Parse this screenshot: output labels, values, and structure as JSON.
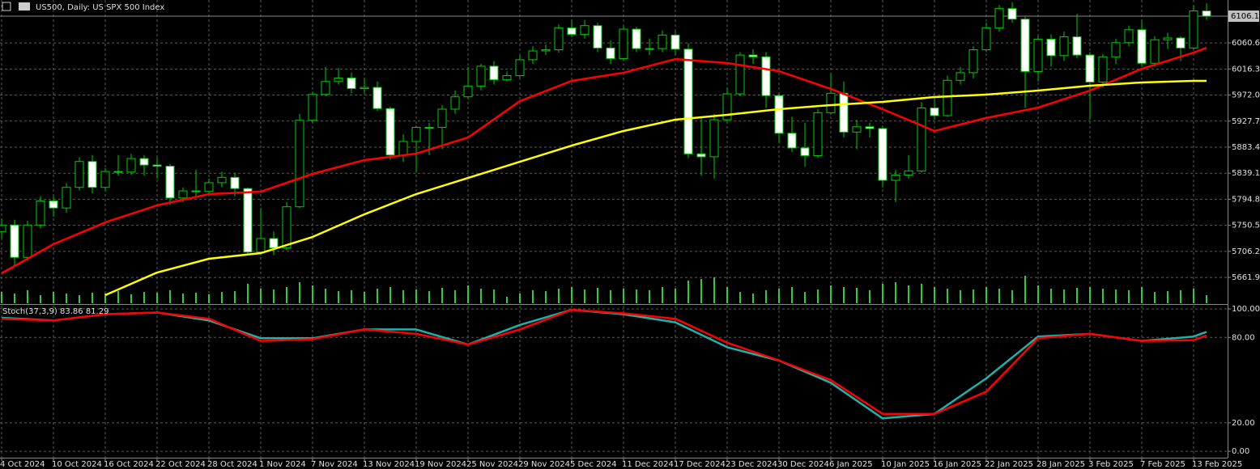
{
  "chart_data": [
    {
      "type": "candlestick",
      "title": "US500, Daily:  US SPX 500 Index",
      "categories": [
        "4 Oct 2024",
        null,
        null,
        null,
        "10 Oct 2024",
        null,
        null,
        null,
        "16 Oct 2024",
        null,
        null,
        null,
        "22 Oct 2024",
        null,
        null,
        null,
        "28 Oct 2024",
        null,
        null,
        null,
        "1 Nov 2024",
        null,
        null,
        null,
        "7 Nov 2024",
        null,
        null,
        null,
        "13 Nov 2024",
        null,
        null,
        null,
        "19 Nov 2024",
        null,
        null,
        null,
        "25 Nov 2024",
        null,
        null,
        null,
        "29 Nov 2024",
        null,
        null,
        null,
        "5 Dec 2024",
        null,
        null,
        null,
        "11 Dec 2024",
        null,
        null,
        null,
        "17 Dec 2024",
        null,
        null,
        null,
        "23 Dec 2024",
        null,
        null,
        null,
        "30 Dec 2024",
        null,
        null,
        null,
        "6 Jan 2025",
        null,
        null,
        null,
        "10 Jan 2025",
        null,
        null,
        null,
        "16 Jan 2025",
        null,
        null,
        null,
        "22 Jan 2025",
        null,
        null,
        null,
        "28 Jan 2025",
        null,
        null,
        null,
        "3 Feb 2025",
        null,
        null,
        null,
        "7 Feb 2025",
        null,
        null,
        null,
        "13 Feb 2025",
        null
      ],
      "open": [
        5740,
        5751,
        5696,
        5751,
        5792,
        5780,
        5815,
        5859,
        5815,
        5842,
        5841,
        5864,
        5853,
        5851,
        5797,
        5809,
        5808,
        5823,
        5832,
        5813,
        5705,
        5728,
        5712,
        5782,
        5929,
        5973,
        5995,
        6001,
        5983,
        5985,
        5949,
        5870,
        5893,
        5917,
        5917,
        5948,
        5969,
        5987,
        6021,
        5998,
        6005,
        6032,
        6047,
        6049,
        6086,
        6075,
        6090,
        6052,
        6034,
        6084,
        6051,
        6051,
        6074,
        6050,
        5872,
        5867,
        5930,
        5974,
        6040,
        6037,
        5971,
        5907,
        5882,
        5869,
        5942,
        5975,
        5909,
        5918,
        5915,
        5827,
        5836,
        5843,
        5950,
        5937,
        5997,
        6010,
        6049,
        6086,
        6119,
        6101,
        6012,
        6067,
        6039,
        6071,
        6040,
        5994,
        6037,
        6061,
        6083,
        6026,
        6066,
        6069,
        6052,
        6115
      ],
      "high": [
        5762,
        5760,
        5758,
        5800,
        5800,
        5822,
        5866,
        5870,
        5848,
        5870,
        5872,
        5870,
        5866,
        5855,
        5815,
        5845,
        5830,
        5842,
        5840,
        5815,
        5780,
        5740,
        5790,
        5940,
        5978,
        6020,
        6018,
        6010,
        6000,
        5995,
        5952,
        5905,
        5920,
        5925,
        5955,
        5980,
        6020,
        6025,
        6030,
        6012,
        6040,
        6055,
        6058,
        6092,
        6100,
        6100,
        6095,
        6065,
        6090,
        6088,
        6068,
        6082,
        6080,
        6060,
        5935,
        5940,
        5985,
        6045,
        6050,
        6045,
        5975,
        5935,
        5925,
        5948,
        6010,
        5995,
        5930,
        5925,
        5920,
        5845,
        5870,
        5960,
        5965,
        6005,
        6020,
        6055,
        6095,
        6125,
        6130,
        6105,
        6072,
        6075,
        6080,
        6110,
        6045,
        6042,
        6068,
        6090,
        6100,
        6072,
        6078,
        6072,
        6125,
        6128
      ],
      "low": [
        5728,
        5680,
        5690,
        5745,
        5765,
        5772,
        5810,
        5805,
        5808,
        5835,
        5836,
        5835,
        5830,
        5785,
        5790,
        5800,
        5802,
        5815,
        5800,
        5700,
        5700,
        5700,
        5708,
        5780,
        5925,
        5970,
        5990,
        5975,
        5975,
        5945,
        5862,
        5858,
        5840,
        5870,
        5880,
        5940,
        5965,
        5980,
        5990,
        5995,
        6000,
        6025,
        6040,
        6044,
        6070,
        6068,
        6045,
        6025,
        6030,
        6045,
        6040,
        6045,
        6040,
        5865,
        5835,
        5830,
        5925,
        5970,
        6025,
        5950,
        5890,
        5875,
        5850,
        5865,
        5938,
        5900,
        5880,
        5900,
        5815,
        5790,
        5830,
        5840,
        5930,
        5935,
        5990,
        6000,
        6045,
        6080,
        6095,
        5950,
        5995,
        6020,
        6030,
        6035,
        5930,
        5985,
        6025,
        6055,
        6020,
        6020,
        6050,
        6030,
        6050,
        6100
      ],
      "close": [
        5751,
        5696,
        5751,
        5792,
        5780,
        5815,
        5859,
        5815,
        5842,
        5841,
        5864,
        5853,
        5851,
        5797,
        5809,
        5808,
        5823,
        5832,
        5813,
        5705,
        5728,
        5712,
        5782,
        5929,
        5973,
        5995,
        6001,
        5983,
        5985,
        5949,
        5870,
        5893,
        5917,
        5917,
        5948,
        5969,
        5987,
        6021,
        5998,
        6005,
        6032,
        6047,
        6049,
        6086,
        6075,
        6090,
        6052,
        6034,
        6084,
        6051,
        6051,
        6074,
        6050,
        5872,
        5867,
        5930,
        5974,
        6040,
        6037,
        5971,
        5907,
        5882,
        5869,
        5942,
        5975,
        5909,
        5918,
        5915,
        5827,
        5836,
        5843,
        5950,
        5937,
        5997,
        6010,
        6049,
        6086,
        6119,
        6101,
        6012,
        6067,
        6039,
        6071,
        6040,
        5994,
        6037,
        6061,
        6083,
        6026,
        6066,
        6069,
        6052,
        6115,
        6106.1
      ],
      "volume": [
        14,
        12,
        16,
        10,
        14,
        12,
        10,
        13,
        12,
        15,
        11,
        14,
        13,
        16,
        12,
        13,
        11,
        14,
        15,
        24,
        18,
        17,
        20,
        26,
        22,
        18,
        15,
        16,
        14,
        18,
        20,
        16,
        17,
        15,
        19,
        16,
        22,
        18,
        17,
        8,
        12,
        16,
        15,
        18,
        20,
        17,
        19,
        16,
        18,
        17,
        16,
        20,
        18,
        28,
        30,
        32,
        20,
        14,
        12,
        16,
        18,
        20,
        14,
        17,
        22,
        20,
        19,
        16,
        24,
        26,
        22,
        24,
        20,
        18,
        16,
        17,
        20,
        18,
        16,
        34,
        22,
        18,
        17,
        19,
        20,
        18,
        17,
        16,
        20,
        14,
        15,
        16,
        18,
        10
      ],
      "series": [
        {
          "color": "#ff0000",
          "x": [
            0,
            4,
            8,
            12,
            16,
            20,
            24,
            28,
            32,
            36,
            40,
            44,
            48,
            52,
            56,
            60,
            64,
            68,
            72,
            76,
            80,
            84,
            88,
            92,
            93
          ],
          "values": [
            5668.9,
            5718.4,
            5755.5,
            5784.4,
            5803.6,
            5807.7,
            5838,
            5861.4,
            5872.4,
            5899.9,
            5961.7,
            5996.1,
            6009.9,
            6033.2,
            6026.4,
            6012.6,
            5982.4,
            5948,
            5910.9,
            5933,
            5950.7,
            5979.6,
            6016.7,
            6044.2,
            6052.5
          ]
        },
        {
          "color": "#ffff00",
          "x": [
            8,
            12,
            16,
            20,
            24,
            28,
            32,
            36,
            40,
            44,
            48,
            52,
            56,
            60,
            64,
            68,
            72,
            76,
            80,
            84,
            88,
            92,
            93
          ],
          "values": [
            5631.7,
            5670.2,
            5693.6,
            5703.2,
            5730.7,
            5769.2,
            5803.6,
            5831.1,
            5858.6,
            5886.1,
            5910.9,
            5930.1,
            5938.4,
            5948,
            5954.9,
            5960.4,
            5968.6,
            5972.7,
            5979.6,
            5987.9,
            5993.4,
            5996.1,
            5996.1
          ]
        }
      ],
      "bull_color": "#000000",
      "bear_color": "#ffffff",
      "wick_color": "#00d000",
      "volume_color": "#32cd32",
      "ylim": [
        5618,
        6133.6
      ],
      "yticks": [
        6060.6,
        6016.3,
        {
          "value": 5972,
          "label": "5972.0"
        },
        5927.7,
        5883.4,
        5839.1,
        5794.8,
        5750.5,
        5706.2,
        5661.9
      ],
      "last_price": 6106.1,
      "grid": true
    },
    {
      "type": "line",
      "title": "Stoch(37,3,9) 83.86 81.29",
      "series": [
        {
          "color": "#20b2aa",
          "x": [
            0,
            4,
            8,
            12,
            16,
            20,
            24,
            28,
            32,
            36,
            40,
            44,
            48,
            52,
            56,
            60,
            64,
            68,
            72,
            76,
            80,
            84,
            88,
            92,
            93
          ],
          "values": [
            93.75,
            91.9,
            96.25,
            97.5,
            91.9,
            79.4,
            79.4,
            85.6,
            85.6,
            75,
            88.75,
            99.4,
            96.25,
            90.6,
            73.1,
            63.75,
            48.1,
            23.1,
            26.25,
            51.25,
            80.6,
            82.5,
            77.5,
            80.6,
            83.86
          ]
        },
        {
          "color": "#ff0000",
          "x": [
            0,
            4,
            8,
            12,
            16,
            20,
            24,
            28,
            32,
            36,
            40,
            44,
            48,
            52,
            56,
            60,
            64,
            68,
            72,
            76,
            80,
            84,
            88,
            92,
            93
          ],
          "values": [
            93.1,
            91.9,
            96.25,
            97.5,
            93.1,
            77.5,
            78.75,
            85.6,
            82.5,
            75,
            85.6,
            99.4,
            96.9,
            93.1,
            76.25,
            63.75,
            50,
            26.25,
            26.25,
            41.9,
            79.4,
            82.5,
            77.5,
            78.1,
            81.29
          ]
        }
      ],
      "ylim": [
        -4.5,
        102.3
      ],
      "yticks": [
        {
          "value": 100,
          "label": "100.00"
        },
        {
          "value": 80,
          "label": "80.00"
        },
        {
          "value": 20,
          "label": "20.00"
        },
        {
          "value": 0,
          "label": "0.00"
        }
      ],
      "grid": true
    }
  ]
}
